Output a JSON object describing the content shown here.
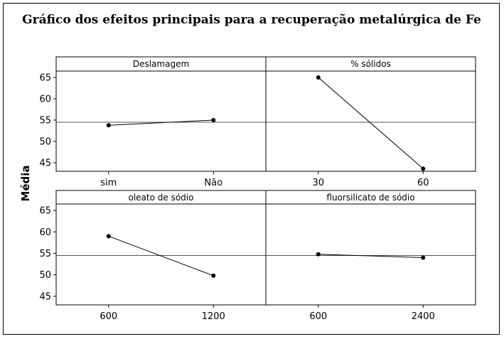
{
  "chart_data": {
    "type": "line",
    "title": "Gráfico dos efeitos principais para a recuperação metalúrgica de Fe",
    "ylabel": "Média",
    "ylim": [
      43,
      66.5
    ],
    "yticks": [
      45,
      50,
      55,
      60,
      65
    ],
    "reference_mean": 54.5,
    "grid": false,
    "colors": {
      "line": "#000000",
      "point": "#000000",
      "frame": "#000000"
    },
    "panels": [
      {
        "name": "Deslamagem",
        "categories": [
          "sim",
          "Não"
        ],
        "values": [
          53.8,
          55.0
        ]
      },
      {
        "name": "% sólidos",
        "categories": [
          "30",
          "60"
        ],
        "values": [
          65.0,
          43.6
        ]
      },
      {
        "name": "oleato de sódio",
        "categories": [
          "600",
          "1200"
        ],
        "values": [
          59.0,
          49.8
        ]
      },
      {
        "name": "fluorsilicato de sódio",
        "categories": [
          "600",
          "2400"
        ],
        "values": [
          54.8,
          54.0
        ]
      }
    ]
  }
}
